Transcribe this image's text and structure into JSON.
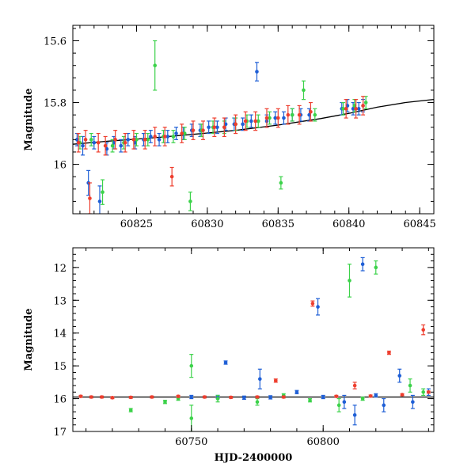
{
  "chart_data": [
    {
      "type": "scatter",
      "panel": "top",
      "title": "",
      "xlabel": "",
      "ylabel": "Magnitude",
      "xlim": [
        60820.5,
        60846
      ],
      "ylim": [
        16.16,
        15.55
      ],
      "inverted_y": true,
      "x_ticks": [
        60825,
        60830,
        60835,
        60840,
        60845
      ],
      "x_tick_labels": [
        "60825",
        "60830",
        "60835",
        "60840",
        "60845"
      ],
      "y_ticks": [
        15.6,
        15.8,
        16
      ],
      "y_tick_labels": [
        "15.6",
        "15.8",
        "16"
      ],
      "grid": false,
      "legend": "none",
      "series": [
        {
          "color": "#1f5fd6",
          "points": [
            [
              60820.8,
              15.92,
              0.02
            ],
            [
              60821.2,
              15.94,
              0.03
            ],
            [
              60821.6,
              16.06,
              0.04
            ],
            [
              60822.0,
              15.93,
              0.02
            ],
            [
              60822.4,
              16.12,
              0.05
            ],
            [
              60822.9,
              15.95,
              0.02
            ],
            [
              60823.4,
              15.93,
              0.02
            ],
            [
              60823.9,
              15.94,
              0.02
            ],
            [
              60824.4,
              15.92,
              0.02
            ],
            [
              60824.9,
              15.93,
              0.02
            ],
            [
              60825.5,
              15.92,
              0.02
            ],
            [
              60826.0,
              15.91,
              0.02
            ],
            [
              60826.6,
              15.92,
              0.02
            ],
            [
              60827.2,
              15.91,
              0.02
            ],
            [
              60827.8,
              15.9,
              0.02
            ],
            [
              60828.3,
              15.9,
              0.02
            ],
            [
              60828.9,
              15.89,
              0.02
            ],
            [
              60829.5,
              15.89,
              0.02
            ],
            [
              60830.1,
              15.88,
              0.02
            ],
            [
              60830.7,
              15.88,
              0.02
            ],
            [
              60831.3,
              15.87,
              0.02
            ],
            [
              60831.9,
              15.87,
              0.02
            ],
            [
              60832.5,
              15.87,
              0.02
            ],
            [
              60833.1,
              15.86,
              0.02
            ],
            [
              60833.5,
              15.7,
              0.03
            ],
            [
              60834.2,
              15.86,
              0.02
            ],
            [
              60834.8,
              15.85,
              0.02
            ],
            [
              60835.4,
              15.85,
              0.02
            ],
            [
              60836.0,
              15.84,
              0.02
            ],
            [
              60836.6,
              15.84,
              0.02
            ],
            [
              60837.2,
              15.84,
              0.02
            ],
            [
              60839.5,
              15.82,
              0.02
            ],
            [
              60839.9,
              15.81,
              0.02
            ],
            [
              60840.3,
              15.82,
              0.02
            ],
            [
              60840.7,
              15.82,
              0.02
            ],
            [
              60841.0,
              15.81,
              0.02
            ]
          ]
        },
        {
          "color": "#3cd24a",
          "points": [
            [
              60821.0,
              15.93,
              0.02
            ],
            [
              60821.8,
              15.92,
              0.02
            ],
            [
              60822.6,
              16.09,
              0.04
            ],
            [
              60823.3,
              15.94,
              0.02
            ],
            [
              60824.1,
              15.93,
              0.02
            ],
            [
              60825.0,
              15.92,
              0.02
            ],
            [
              60825.8,
              15.92,
              0.02
            ],
            [
              60826.3,
              15.68,
              0.08
            ],
            [
              60826.9,
              15.91,
              0.02
            ],
            [
              60827.6,
              15.91,
              0.02
            ],
            [
              60828.4,
              15.9,
              0.02
            ],
            [
              60828.8,
              16.12,
              0.03
            ],
            [
              60829.6,
              15.89,
              0.02
            ],
            [
              60830.4,
              15.88,
              0.02
            ],
            [
              60831.2,
              15.88,
              0.02
            ],
            [
              60832.0,
              15.87,
              0.02
            ],
            [
              60832.8,
              15.86,
              0.02
            ],
            [
              60833.6,
              15.86,
              0.02
            ],
            [
              60834.4,
              15.85,
              0.02
            ],
            [
              60835.2,
              16.06,
              0.02
            ],
            [
              60836.0,
              15.84,
              0.02
            ],
            [
              60836.8,
              15.76,
              0.03
            ],
            [
              60837.6,
              15.84,
              0.02
            ],
            [
              60839.6,
              15.82,
              0.02
            ],
            [
              60840.4,
              15.81,
              0.02
            ],
            [
              60841.2,
              15.8,
              0.02
            ]
          ]
        },
        {
          "color": "#ee3e2e",
          "points": [
            [
              60820.9,
              15.93,
              0.03
            ],
            [
              60821.4,
              15.92,
              0.03
            ],
            [
              60821.7,
              16.11,
              0.05
            ],
            [
              60822.3,
              15.93,
              0.03
            ],
            [
              60822.8,
              15.94,
              0.03
            ],
            [
              60823.5,
              15.92,
              0.03
            ],
            [
              60824.2,
              15.93,
              0.03
            ],
            [
              60824.8,
              15.92,
              0.03
            ],
            [
              60825.6,
              15.92,
              0.03
            ],
            [
              60826.3,
              15.91,
              0.03
            ],
            [
              60827.0,
              15.91,
              0.03
            ],
            [
              60827.5,
              16.04,
              0.03
            ],
            [
              60828.2,
              15.9,
              0.03
            ],
            [
              60829.0,
              15.89,
              0.03
            ],
            [
              60829.7,
              15.89,
              0.03
            ],
            [
              60830.5,
              15.88,
              0.03
            ],
            [
              60831.2,
              15.88,
              0.03
            ],
            [
              60832.0,
              15.87,
              0.03
            ],
            [
              60832.7,
              15.86,
              0.03
            ],
            [
              60833.4,
              15.86,
              0.03
            ],
            [
              60834.2,
              15.85,
              0.03
            ],
            [
              60835.0,
              15.85,
              0.03
            ],
            [
              60835.7,
              15.84,
              0.03
            ],
            [
              60836.5,
              15.84,
              0.03
            ],
            [
              60837.3,
              15.83,
              0.03
            ],
            [
              60839.8,
              15.82,
              0.03
            ],
            [
              60840.5,
              15.82,
              0.03
            ],
            [
              60841.0,
              15.81,
              0.03
            ]
          ]
        }
      ],
      "model_curve": {
        "color": "#000000",
        "x": [
          60820.5,
          60823,
          60826,
          60829,
          60832,
          60835,
          60838,
          60840,
          60842,
          60844,
          60846
        ],
        "y": [
          15.935,
          15.925,
          15.915,
          15.903,
          15.89,
          15.873,
          15.852,
          15.835,
          15.815,
          15.8,
          15.79
        ]
      }
    },
    {
      "type": "scatter",
      "panel": "bottom",
      "title": "",
      "xlabel": "HJD-2400000",
      "ylabel": "Magnitude",
      "xlim": [
        60705,
        60842
      ],
      "ylim": [
        17,
        11.4
      ],
      "inverted_y": true,
      "x_ticks": [
        60750,
        60800
      ],
      "x_tick_labels": [
        "60750",
        "60800"
      ],
      "y_ticks": [
        12,
        13,
        14,
        15,
        16,
        17
      ],
      "y_tick_labels": [
        "12",
        "13",
        "14",
        "15",
        "16",
        "17"
      ],
      "grid": false,
      "legend": "none",
      "series": [
        {
          "color": "#1f5fd6",
          "points": [
            [
              60763,
              14.9,
              0.05
            ],
            [
              60776,
              15.4,
              0.3
            ],
            [
              60790,
              15.8,
              0.05
            ],
            [
              60798,
              13.2,
              0.25
            ],
            [
              60808,
              16.1,
              0.2
            ],
            [
              60812,
              16.5,
              0.3
            ],
            [
              60815,
              11.9,
              0.2
            ],
            [
              60823,
              16.2,
              0.2
            ],
            [
              60829,
              15.3,
              0.2
            ],
            [
              60834,
              16.1,
              0.2
            ],
            [
              60840,
              15.8,
              0.1
            ],
            [
              60750,
              15.95,
              0.05
            ],
            [
              60760,
              15.95,
              0.05
            ],
            [
              60770,
              15.97,
              0.05
            ],
            [
              60780,
              15.96,
              0.05
            ],
            [
              60800,
              15.95,
              0.05
            ],
            [
              60820,
              15.9,
              0.05
            ]
          ]
        },
        {
          "color": "#3cd24a",
          "points": [
            [
              60727,
              16.35,
              0.05
            ],
            [
              60740,
              16.1,
              0.05
            ],
            [
              60750,
              15.0,
              0.35
            ],
            [
              60750,
              16.6,
              0.4
            ],
            [
              60760,
              16.0,
              0.1
            ],
            [
              60775,
              16.1,
              0.1
            ],
            [
              60785,
              15.9,
              0.05
            ],
            [
              60806,
              16.2,
              0.2
            ],
            [
              60810,
              12.4,
              0.5
            ],
            [
              60820,
              12.0,
              0.2
            ],
            [
              60833,
              15.6,
              0.2
            ],
            [
              60838,
              15.8,
              0.1
            ],
            [
              60745,
              16.0,
              0.05
            ],
            [
              60795,
              16.05,
              0.05
            ],
            [
              60815,
              16.0,
              0.05
            ]
          ]
        },
        {
          "color": "#ee3e2e",
          "points": [
            [
              60708,
              15.93,
              0.03
            ],
            [
              60712,
              15.95,
              0.03
            ],
            [
              60716,
              15.95,
              0.03
            ],
            [
              60720,
              15.97,
              0.03
            ],
            [
              60727,
              15.96,
              0.03
            ],
            [
              60735,
              15.95,
              0.03
            ],
            [
              60745,
              15.93,
              0.03
            ],
            [
              60755,
              15.95,
              0.03
            ],
            [
              60765,
              15.96,
              0.03
            ],
            [
              60775,
              15.95,
              0.03
            ],
            [
              60782,
              15.45,
              0.05
            ],
            [
              60785,
              15.95,
              0.03
            ],
            [
              60796,
              13.1,
              0.08
            ],
            [
              60805,
              15.93,
              0.03
            ],
            [
              60812,
              15.6,
              0.1
            ],
            [
              60818,
              15.92,
              0.03
            ],
            [
              60825,
              14.6,
              0.05
            ],
            [
              60830,
              15.88,
              0.03
            ],
            [
              60838,
              13.9,
              0.15
            ],
            [
              60840,
              15.8,
              0.03
            ]
          ]
        }
      ],
      "reference_line": {
        "color": "#000000",
        "y": 15.95
      }
    }
  ]
}
